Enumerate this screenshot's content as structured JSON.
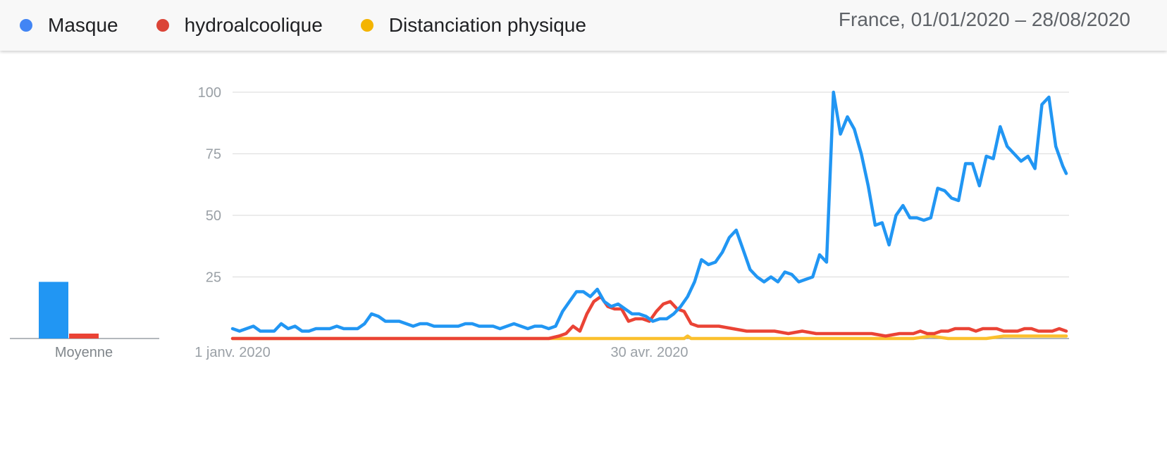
{
  "header": {
    "legend": [
      {
        "label": "Masque",
        "color": "#4285f4"
      },
      {
        "label": "hydroalcoolique",
        "color": "#db4437"
      },
      {
        "label": "Distanciation physique",
        "color": "#f4b400"
      }
    ],
    "range": "France, 01/01/2020 – 28/08/2020"
  },
  "chart_data": [
    {
      "type": "bar",
      "categories": [
        "Moyenne"
      ],
      "series": [
        {
          "name": "Masque",
          "color": "#2196f3",
          "values": [
            23
          ]
        },
        {
          "name": "hydroalcoolique",
          "color": "#ea4335",
          "values": [
            2
          ]
        },
        {
          "name": "Distanciation physique",
          "color": "#fbc02d",
          "values": [
            0
          ]
        }
      ],
      "ylim": [
        0,
        100
      ]
    },
    {
      "type": "line",
      "x_label_ticks": [
        "1 janv. 2020",
        "30 avr. 2020"
      ],
      "y_ticks": [
        100,
        75,
        50,
        25
      ],
      "ylim": [
        0,
        100
      ],
      "grid": true,
      "x_start": "2020-01-01",
      "x_end": "2020-08-28",
      "series": [
        {
          "name": "Masque",
          "color": "#2196f3",
          "points": [
            [
              "2020-01-01",
              4
            ],
            [
              "2020-01-03",
              3
            ],
            [
              "2020-01-05",
              4
            ],
            [
              "2020-01-07",
              5
            ],
            [
              "2020-01-09",
              3
            ],
            [
              "2020-01-11",
              3
            ],
            [
              "2020-01-13",
              3
            ],
            [
              "2020-01-15",
              6
            ],
            [
              "2020-01-17",
              4
            ],
            [
              "2020-01-19",
              5
            ],
            [
              "2020-01-21",
              3
            ],
            [
              "2020-01-23",
              3
            ],
            [
              "2020-01-25",
              4
            ],
            [
              "2020-01-27",
              4
            ],
            [
              "2020-01-29",
              4
            ],
            [
              "2020-01-31",
              5
            ],
            [
              "2020-02-02",
              4
            ],
            [
              "2020-02-04",
              4
            ],
            [
              "2020-02-06",
              4
            ],
            [
              "2020-02-08",
              6
            ],
            [
              "2020-02-10",
              10
            ],
            [
              "2020-02-12",
              9
            ],
            [
              "2020-02-14",
              7
            ],
            [
              "2020-02-16",
              7
            ],
            [
              "2020-02-18",
              7
            ],
            [
              "2020-02-20",
              6
            ],
            [
              "2020-02-22",
              5
            ],
            [
              "2020-02-24",
              6
            ],
            [
              "2020-02-26",
              6
            ],
            [
              "2020-02-28",
              5
            ],
            [
              "2020-03-02",
              5
            ],
            [
              "2020-03-04",
              5
            ],
            [
              "2020-03-06",
              5
            ],
            [
              "2020-03-08",
              6
            ],
            [
              "2020-03-10",
              6
            ],
            [
              "2020-03-12",
              5
            ],
            [
              "2020-03-14",
              5
            ],
            [
              "2020-03-16",
              5
            ],
            [
              "2020-03-18",
              4
            ],
            [
              "2020-03-20",
              5
            ],
            [
              "2020-03-22",
              6
            ],
            [
              "2020-03-24",
              5
            ],
            [
              "2020-03-26",
              4
            ],
            [
              "2020-03-28",
              5
            ],
            [
              "2020-03-30",
              5
            ],
            [
              "2020-04-01",
              4
            ],
            [
              "2020-04-03",
              5
            ],
            [
              "2020-04-05",
              11
            ],
            [
              "2020-04-07",
              15
            ],
            [
              "2020-04-09",
              19
            ],
            [
              "2020-04-11",
              19
            ],
            [
              "2020-04-13",
              17
            ],
            [
              "2020-04-15",
              20
            ],
            [
              "2020-04-17",
              15
            ],
            [
              "2020-04-19",
              13
            ],
            [
              "2020-04-21",
              14
            ],
            [
              "2020-04-23",
              12
            ],
            [
              "2020-04-25",
              10
            ],
            [
              "2020-04-27",
              10
            ],
            [
              "2020-04-29",
              9
            ],
            [
              "2020-05-01",
              7
            ],
            [
              "2020-05-03",
              8
            ],
            [
              "2020-05-05",
              8
            ],
            [
              "2020-05-07",
              10
            ],
            [
              "2020-05-09",
              13
            ],
            [
              "2020-05-11",
              17
            ],
            [
              "2020-05-13",
              23
            ],
            [
              "2020-05-15",
              32
            ],
            [
              "2020-05-17",
              30
            ],
            [
              "2020-05-19",
              31
            ],
            [
              "2020-05-21",
              35
            ],
            [
              "2020-05-23",
              41
            ],
            [
              "2020-05-25",
              44
            ],
            [
              "2020-05-27",
              36
            ],
            [
              "2020-05-29",
              28
            ],
            [
              "2020-05-31",
              25
            ],
            [
              "2020-06-02",
              23
            ],
            [
              "2020-06-04",
              25
            ],
            [
              "2020-06-06",
              23
            ],
            [
              "2020-06-08",
              27
            ],
            [
              "2020-06-10",
              26
            ],
            [
              "2020-06-12",
              23
            ],
            [
              "2020-06-14",
              24
            ],
            [
              "2020-06-16",
              25
            ],
            [
              "2020-06-18",
              34
            ],
            [
              "2020-06-20",
              31
            ],
            [
              "2020-06-22",
              100
            ],
            [
              "2020-06-24",
              83
            ],
            [
              "2020-06-26",
              90
            ],
            [
              "2020-06-28",
              85
            ],
            [
              "2020-06-30",
              75
            ],
            [
              "2020-07-02",
              62
            ],
            [
              "2020-07-04",
              46
            ],
            [
              "2020-07-06",
              47
            ],
            [
              "2020-07-08",
              38
            ],
            [
              "2020-07-10",
              50
            ],
            [
              "2020-07-12",
              54
            ],
            [
              "2020-07-14",
              49
            ],
            [
              "2020-07-16",
              49
            ],
            [
              "2020-07-18",
              48
            ],
            [
              "2020-07-20",
              49
            ],
            [
              "2020-07-22",
              61
            ],
            [
              "2020-07-24",
              60
            ],
            [
              "2020-07-26",
              57
            ],
            [
              "2020-07-28",
              56
            ],
            [
              "2020-07-30",
              71
            ],
            [
              "2020-08-01",
              71
            ],
            [
              "2020-08-03",
              62
            ],
            [
              "2020-08-05",
              74
            ],
            [
              "2020-08-07",
              73
            ],
            [
              "2020-08-09",
              86
            ],
            [
              "2020-08-11",
              78
            ],
            [
              "2020-08-13",
              75
            ],
            [
              "2020-08-15",
              72
            ],
            [
              "2020-08-17",
              74
            ],
            [
              "2020-08-19",
              69
            ],
            [
              "2020-08-21",
              95
            ],
            [
              "2020-08-23",
              98
            ],
            [
              "2020-08-25",
              78
            ],
            [
              "2020-08-27",
              70
            ],
            [
              "2020-08-28",
              67
            ]
          ]
        },
        {
          "name": "hydroalcoolique",
          "color": "#ea4335",
          "points": [
            [
              "2020-01-01",
              0
            ],
            [
              "2020-04-01",
              0
            ],
            [
              "2020-04-04",
              1
            ],
            [
              "2020-04-06",
              2
            ],
            [
              "2020-04-08",
              5
            ],
            [
              "2020-04-10",
              3
            ],
            [
              "2020-04-12",
              10
            ],
            [
              "2020-04-14",
              15
            ],
            [
              "2020-04-16",
              17
            ],
            [
              "2020-04-18",
              13
            ],
            [
              "2020-04-20",
              12
            ],
            [
              "2020-04-22",
              12
            ],
            [
              "2020-04-24",
              7
            ],
            [
              "2020-04-26",
              8
            ],
            [
              "2020-04-28",
              8
            ],
            [
              "2020-04-30",
              7
            ],
            [
              "2020-05-02",
              11
            ],
            [
              "2020-05-04",
              14
            ],
            [
              "2020-05-06",
              15
            ],
            [
              "2020-05-08",
              12
            ],
            [
              "2020-05-10",
              11
            ],
            [
              "2020-05-12",
              6
            ],
            [
              "2020-05-14",
              5
            ],
            [
              "2020-05-16",
              5
            ],
            [
              "2020-05-20",
              5
            ],
            [
              "2020-05-24",
              4
            ],
            [
              "2020-05-28",
              3
            ],
            [
              "2020-06-01",
              3
            ],
            [
              "2020-06-05",
              3
            ],
            [
              "2020-06-09",
              2
            ],
            [
              "2020-06-13",
              3
            ],
            [
              "2020-06-17",
              2
            ],
            [
              "2020-06-21",
              2
            ],
            [
              "2020-06-25",
              2
            ],
            [
              "2020-06-29",
              2
            ],
            [
              "2020-07-03",
              2
            ],
            [
              "2020-07-07",
              1
            ],
            [
              "2020-07-11",
              2
            ],
            [
              "2020-07-15",
              2
            ],
            [
              "2020-07-17",
              3
            ],
            [
              "2020-07-19",
              2
            ],
            [
              "2020-07-21",
              2
            ],
            [
              "2020-07-23",
              3
            ],
            [
              "2020-07-25",
              3
            ],
            [
              "2020-07-27",
              4
            ],
            [
              "2020-07-31",
              4
            ],
            [
              "2020-08-02",
              3
            ],
            [
              "2020-08-04",
              4
            ],
            [
              "2020-08-08",
              4
            ],
            [
              "2020-08-10",
              3
            ],
            [
              "2020-08-14",
              3
            ],
            [
              "2020-08-16",
              4
            ],
            [
              "2020-08-18",
              4
            ],
            [
              "2020-08-20",
              3
            ],
            [
              "2020-08-24",
              3
            ],
            [
              "2020-08-26",
              4
            ],
            [
              "2020-08-28",
              3
            ]
          ]
        },
        {
          "name": "Distanciation physique",
          "color": "#fbc02d",
          "points": [
            [
              "2020-01-01",
              0
            ],
            [
              "2020-05-10",
              0
            ],
            [
              "2020-05-11",
              1
            ],
            [
              "2020-05-12",
              0
            ],
            [
              "2020-07-15",
              0
            ],
            [
              "2020-07-20",
              1
            ],
            [
              "2020-07-25",
              0
            ],
            [
              "2020-08-05",
              0
            ],
            [
              "2020-08-10",
              1
            ],
            [
              "2020-08-15",
              1
            ],
            [
              "2020-08-20",
              1
            ],
            [
              "2020-08-25",
              1
            ],
            [
              "2020-08-28",
              1
            ]
          ]
        }
      ]
    }
  ]
}
